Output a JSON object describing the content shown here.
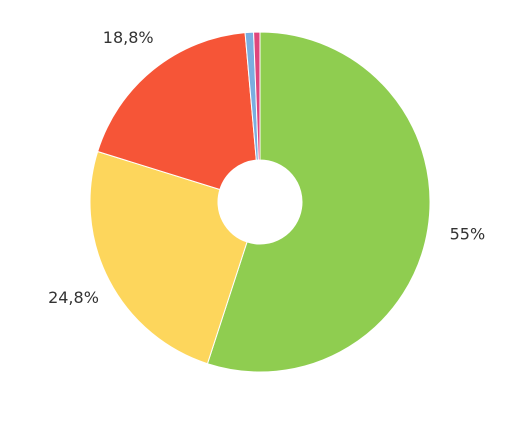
{
  "chart_data": {
    "type": "donut",
    "values": [
      55,
      24.8,
      18.8,
      0.8,
      0.6
    ],
    "value_labels": [
      "55%",
      "24,8%",
      "18,8%",
      null,
      null
    ],
    "colors": [
      "#8fcd50",
      "#fdd65c",
      "#f65537",
      "#7aaee0",
      "#df467c"
    ]
  }
}
